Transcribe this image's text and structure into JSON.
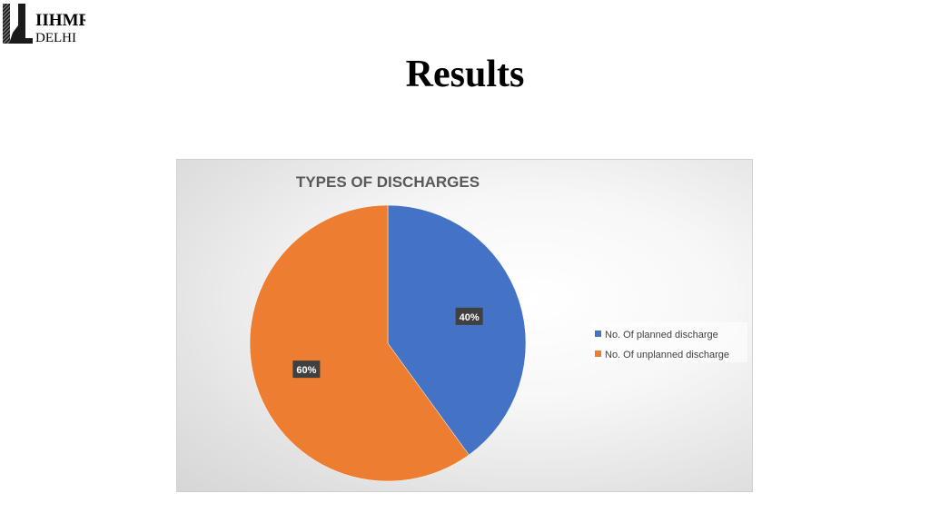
{
  "slide": {
    "title": "Results"
  },
  "logo": {
    "text_top": "IIHMR",
    "text_bottom": "DELHI"
  },
  "chart_data": {
    "type": "pie",
    "title": "TYPES OF DISCHARGES",
    "categories": [
      "No. Of planned discharge",
      "No. Of unplanned discharge"
    ],
    "values": [
      40,
      60
    ],
    "data_labels": [
      "40%",
      "60%"
    ],
    "colors": [
      "#4472c4",
      "#ed7d31"
    ],
    "legend": "right"
  }
}
